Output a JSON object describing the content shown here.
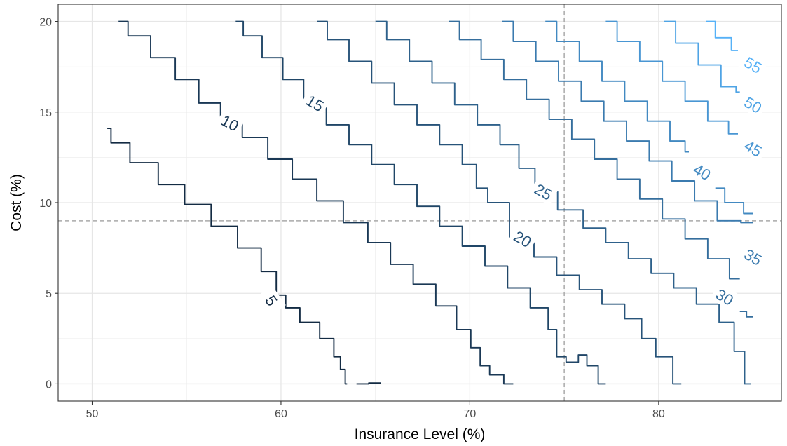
{
  "chart_data": {
    "type": "contour",
    "title": "",
    "xlabel": "Insurance Level (%)",
    "ylabel": "Cost (%)",
    "xlim": [
      48.2,
      86.5
    ],
    "ylim": [
      -0.95,
      20.95
    ],
    "x_ticks": [
      50,
      60,
      70,
      80
    ],
    "x_tick_labels": [
      "50",
      "60",
      "70",
      "80"
    ],
    "y_ticks": [
      0,
      5,
      10,
      15,
      20
    ],
    "y_tick_labels": [
      "0",
      "5",
      "10",
      "15",
      "20"
    ],
    "grid": true,
    "reference_lines": {
      "vertical_x": 75,
      "horizontal_y": 9
    },
    "color_low": "#132b43",
    "color_high": "#56b1f7",
    "reference_line_color": "#a9a9a9",
    "contours": [
      {
        "level": 5,
        "label": "5",
        "label_at": [
          59.5,
          4.6
        ],
        "label_angle": 55,
        "points": [
          [
            50.8,
            14.1
          ],
          [
            51.2,
            13.3
          ],
          [
            52.8,
            12.2
          ],
          [
            54.2,
            11.0
          ],
          [
            55.6,
            9.9
          ],
          [
            57.0,
            8.7
          ],
          [
            58.4,
            7.5
          ],
          [
            59.5,
            6.2
          ],
          [
            60.0,
            4.9
          ],
          [
            60.5,
            4.2
          ],
          [
            61.5,
            3.4
          ],
          [
            62.6,
            2.5
          ],
          [
            63.0,
            1.5
          ],
          [
            63.3,
            0.8
          ],
          [
            63.5,
            0.0
          ]
        ]
      },
      {
        "level": 5,
        "label": "",
        "label_at": null,
        "label_angle": 0,
        "points": [
          [
            64.0,
            0.0
          ],
          [
            65.3,
            0.05
          ]
        ]
      },
      {
        "level": 10,
        "label": "10",
        "label_at": [
          57.3,
          14.4
        ],
        "label_angle": 28,
        "points": [
          [
            51.4,
            20.0
          ],
          [
            52.4,
            19.2
          ],
          [
            53.8,
            18.0
          ],
          [
            55.0,
            16.8
          ],
          [
            56.3,
            15.5
          ],
          [
            57.3,
            14.4
          ],
          [
            58.6,
            13.6
          ],
          [
            60.0,
            12.4
          ],
          [
            61.2,
            11.3
          ],
          [
            62.6,
            10.1
          ],
          [
            64.0,
            8.9
          ],
          [
            65.2,
            7.8
          ],
          [
            66.4,
            6.6
          ],
          [
            67.6,
            5.5
          ],
          [
            68.8,
            4.3
          ],
          [
            69.8,
            3.0
          ],
          [
            70.3,
            2.0
          ],
          [
            70.8,
            1.0
          ],
          [
            71.3,
            0.5
          ],
          [
            72.3,
            0.0
          ]
        ]
      },
      {
        "level": 15,
        "label": "15",
        "label_at": [
          61.8,
          15.5
        ],
        "label_angle": 30,
        "points": [
          [
            57.6,
            20.0
          ],
          [
            58.4,
            19.2
          ],
          [
            59.6,
            18.0
          ],
          [
            60.6,
            16.8
          ],
          [
            61.8,
            15.5
          ],
          [
            63.0,
            14.3
          ],
          [
            64.2,
            13.2
          ],
          [
            65.4,
            12.1
          ],
          [
            66.6,
            11.0
          ],
          [
            67.8,
            9.8
          ],
          [
            69.0,
            8.7
          ],
          [
            70.2,
            7.6
          ],
          [
            71.4,
            6.5
          ],
          [
            72.6,
            5.3
          ],
          [
            73.8,
            4.2
          ],
          [
            74.5,
            3.0
          ],
          [
            74.7,
            1.5
          ],
          [
            75.5,
            1.2
          ],
          [
            76.0,
            1.6
          ],
          [
            76.4,
            1.0
          ],
          [
            77.2,
            0.0
          ]
        ]
      },
      {
        "level": 20,
        "label": "20",
        "label_at": [
          72.8,
          8.0
        ],
        "label_angle": 30,
        "points": [
          [
            61.9,
            20.0
          ],
          [
            63.0,
            19.0
          ],
          [
            64.2,
            17.8
          ],
          [
            65.4,
            16.6
          ],
          [
            66.6,
            15.4
          ],
          [
            67.8,
            14.3
          ],
          [
            69.0,
            13.2
          ],
          [
            70.2,
            12.1
          ],
          [
            70.5,
            10.8
          ],
          [
            71.4,
            10.0
          ],
          [
            72.8,
            8.0
          ],
          [
            74.0,
            7.0
          ],
          [
            75.2,
            6.0
          ],
          [
            76.4,
            5.2
          ],
          [
            77.6,
            4.4
          ],
          [
            78.8,
            3.6
          ],
          [
            79.4,
            2.5
          ],
          [
            80.3,
            1.5
          ],
          [
            81.2,
            0.0
          ]
        ]
      },
      {
        "level": 25,
        "label": "25",
        "label_at": [
          73.9,
          10.6
        ],
        "label_angle": 30,
        "points": [
          [
            65.0,
            20.0
          ],
          [
            66.2,
            19.0
          ],
          [
            67.4,
            17.8
          ],
          [
            68.6,
            16.6
          ],
          [
            69.8,
            15.4
          ],
          [
            71.0,
            14.3
          ],
          [
            72.2,
            13.2
          ],
          [
            73.0,
            11.9
          ],
          [
            73.9,
            10.6
          ],
          [
            75.4,
            9.6
          ],
          [
            76.6,
            8.6
          ],
          [
            77.8,
            7.8
          ],
          [
            79.0,
            6.9
          ],
          [
            80.2,
            6.1
          ],
          [
            81.4,
            5.3
          ],
          [
            82.6,
            4.4
          ],
          [
            83.8,
            3.4
          ],
          [
            84.2,
            1.8
          ],
          [
            84.9,
            0.0
          ]
        ]
      },
      {
        "level": 30,
        "label": "30",
        "label_at": [
          83.5,
          4.8
        ],
        "label_angle": 30,
        "points": [
          [
            68.9,
            20.0
          ],
          [
            70.0,
            19.0
          ],
          [
            71.2,
            17.9
          ],
          [
            72.4,
            16.8
          ],
          [
            73.6,
            15.7
          ],
          [
            74.8,
            14.6
          ],
          [
            76.0,
            13.5
          ],
          [
            77.2,
            12.4
          ],
          [
            78.4,
            11.3
          ],
          [
            79.6,
            10.2
          ],
          [
            80.8,
            9.1
          ],
          [
            82.0,
            8.0
          ],
          [
            83.2,
            6.9
          ],
          [
            84.3,
            5.8
          ]
        ]
      },
      {
        "level": 30,
        "label": "",
        "label_at": null,
        "label_angle": 0,
        "points": [
          [
            84.3,
            4.0
          ],
          [
            85.0,
            3.7
          ]
        ]
      },
      {
        "level": 35,
        "label": "35",
        "label_at": [
          85.0,
          7.0
        ],
        "label_angle": 30,
        "points": [
          [
            71.7,
            20.0
          ],
          [
            72.9,
            18.9
          ],
          [
            74.1,
            17.8
          ],
          [
            75.3,
            16.7
          ],
          [
            76.5,
            15.6
          ],
          [
            77.7,
            14.5
          ],
          [
            78.9,
            13.4
          ],
          [
            80.1,
            12.3
          ],
          [
            81.3,
            11.2
          ],
          [
            82.5,
            10.1
          ],
          [
            83.7,
            9.0
          ],
          [
            85.0,
            8.9
          ]
        ]
      },
      {
        "level": 40,
        "label": "40",
        "label_at": [
          82.3,
          11.7
        ],
        "label_angle": 30,
        "points": [
          [
            74.0,
            20.0
          ],
          [
            75.2,
            18.9
          ],
          [
            76.4,
            17.8
          ],
          [
            77.6,
            16.7
          ],
          [
            78.8,
            15.6
          ],
          [
            80.0,
            14.5
          ],
          [
            81.2,
            13.4
          ],
          [
            81.6,
            12.8
          ]
        ]
      },
      {
        "level": 40,
        "label": "",
        "label_at": null,
        "label_angle": 0,
        "points": [
          [
            83.0,
            10.8
          ],
          [
            84.0,
            10.0
          ],
          [
            85.0,
            9.4
          ]
        ]
      },
      {
        "level": 45,
        "label": "45",
        "label_at": [
          85.0,
          13.0
        ],
        "label_angle": 30,
        "points": [
          [
            77.2,
            20.0
          ],
          [
            78.4,
            18.9
          ],
          [
            79.6,
            17.8
          ],
          [
            80.8,
            16.7
          ],
          [
            82.0,
            15.6
          ],
          [
            83.2,
            14.5
          ],
          [
            84.2,
            13.8
          ]
        ]
      },
      {
        "level": 50,
        "label": "50",
        "label_at": [
          85.0,
          15.4
        ],
        "label_angle": 30,
        "points": [
          [
            80.3,
            20.0
          ],
          [
            81.5,
            18.8
          ],
          [
            82.7,
            17.6
          ],
          [
            83.9,
            16.4
          ],
          [
            84.3,
            16.1
          ]
        ]
      },
      {
        "level": 55,
        "label": "55",
        "label_at": [
          85.0,
          17.6
        ],
        "label_angle": 30,
        "points": [
          [
            82.5,
            20.0
          ],
          [
            83.5,
            19.1
          ],
          [
            84.2,
            18.4
          ]
        ]
      }
    ]
  }
}
